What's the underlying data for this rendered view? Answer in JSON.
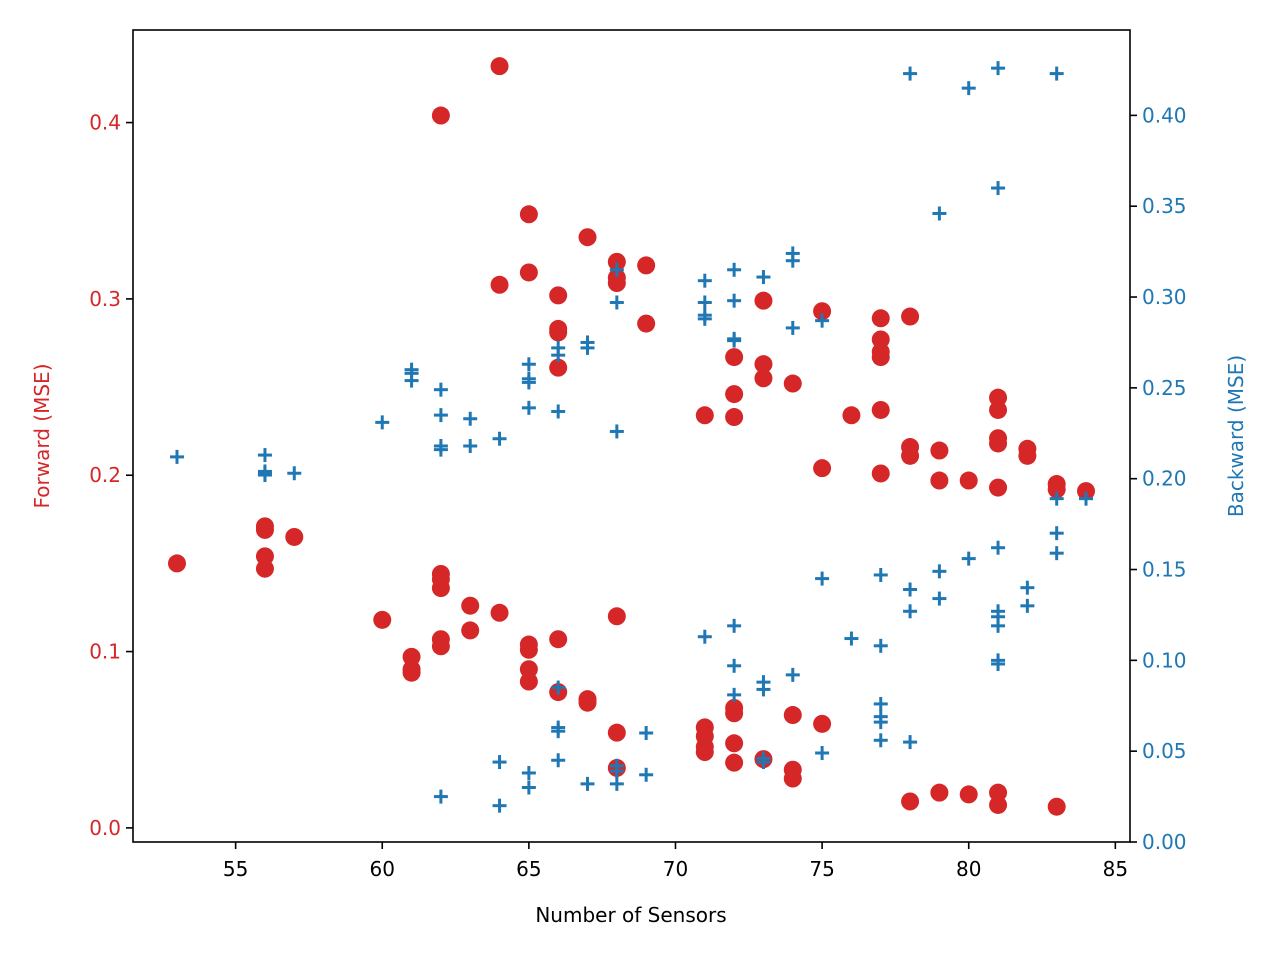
{
  "chart_data": {
    "type": "scatter",
    "xlabel": "Number of Sensors",
    "ylabel_left": "Forward (MSE)",
    "ylabel_right": "Backward (MSE)",
    "xlim": [
      51.5,
      85.5
    ],
    "ylim_left": [
      -0.008,
      0.4525
    ],
    "ylim_right": [
      0,
      0.447
    ],
    "x_ticks": [
      55,
      60,
      65,
      70,
      75,
      80,
      85
    ],
    "x_tick_labels": [
      "55",
      "60",
      "65",
      "70",
      "75",
      "80",
      "85"
    ],
    "left_ticks": [
      0.0,
      0.1,
      0.2,
      0.3,
      0.4
    ],
    "left_tick_labels": [
      "0.0",
      "0.1",
      "0.2",
      "0.3",
      "0.4"
    ],
    "right_ticks": [
      0.0,
      0.05,
      0.1,
      0.15,
      0.2,
      0.25,
      0.3,
      0.35,
      0.4
    ],
    "right_tick_labels": [
      "0.00",
      "0.05",
      "0.10",
      "0.15",
      "0.20",
      "0.25",
      "0.30",
      "0.35",
      "0.40"
    ],
    "colors": {
      "forward": "#d62728",
      "backward": "#1f77b4",
      "axis": "#000000"
    },
    "series": [
      {
        "axis": "left",
        "marker": "circle",
        "color": "#d62728",
        "points": [
          [
            53,
            0.15
          ],
          [
            56,
            0.171
          ],
          [
            56,
            0.169
          ],
          [
            56,
            0.154
          ],
          [
            56,
            0.147
          ],
          [
            57,
            0.165
          ],
          [
            60,
            0.118
          ],
          [
            61,
            0.097
          ],
          [
            61,
            0.09
          ],
          [
            61,
            0.088
          ],
          [
            62,
            0.404
          ],
          [
            62,
            0.144
          ],
          [
            62,
            0.141
          ],
          [
            62,
            0.136
          ],
          [
            62,
            0.107
          ],
          [
            62,
            0.103
          ],
          [
            63,
            0.126
          ],
          [
            63,
            0.112
          ],
          [
            64,
            0.432
          ],
          [
            64,
            0.308
          ],
          [
            64,
            0.122
          ],
          [
            65,
            0.348
          ],
          [
            65,
            0.315
          ],
          [
            65,
            0.104
          ],
          [
            65,
            0.101
          ],
          [
            65,
            0.09
          ],
          [
            65,
            0.083
          ],
          [
            66,
            0.302
          ],
          [
            66,
            0.283
          ],
          [
            66,
            0.281
          ],
          [
            66,
            0.261
          ],
          [
            66,
            0.107
          ],
          [
            66,
            0.077
          ],
          [
            67,
            0.335
          ],
          [
            67,
            0.073
          ],
          [
            67,
            0.071
          ],
          [
            68,
            0.321
          ],
          [
            68,
            0.312
          ],
          [
            68,
            0.309
          ],
          [
            68,
            0.12
          ],
          [
            68,
            0.054
          ],
          [
            68,
            0.034
          ],
          [
            69,
            0.319
          ],
          [
            69,
            0.286
          ],
          [
            71,
            0.234
          ],
          [
            71,
            0.057
          ],
          [
            71,
            0.052
          ],
          [
            71,
            0.046
          ],
          [
            71,
            0.043
          ],
          [
            72,
            0.267
          ],
          [
            72,
            0.246
          ],
          [
            72,
            0.233
          ],
          [
            72,
            0.068
          ],
          [
            72,
            0.065
          ],
          [
            72,
            0.048
          ],
          [
            72,
            0.037
          ],
          [
            73,
            0.299
          ],
          [
            73,
            0.263
          ],
          [
            73,
            0.255
          ],
          [
            73,
            0.039
          ],
          [
            74,
            0.252
          ],
          [
            74,
            0.064
          ],
          [
            74,
            0.033
          ],
          [
            74,
            0.028
          ],
          [
            75,
            0.293
          ],
          [
            75,
            0.204
          ],
          [
            75,
            0.059
          ],
          [
            76,
            0.234
          ],
          [
            77,
            0.289
          ],
          [
            77,
            0.277
          ],
          [
            77,
            0.27
          ],
          [
            77,
            0.267
          ],
          [
            77,
            0.237
          ],
          [
            77,
            0.201
          ],
          [
            78,
            0.29
          ],
          [
            78,
            0.216
          ],
          [
            78,
            0.211
          ],
          [
            78,
            0.015
          ],
          [
            79,
            0.214
          ],
          [
            79,
            0.197
          ],
          [
            79,
            0.02
          ],
          [
            80,
            0.197
          ],
          [
            80,
            0.019
          ],
          [
            81,
            0.244
          ],
          [
            81,
            0.237
          ],
          [
            81,
            0.221
          ],
          [
            81,
            0.218
          ],
          [
            81,
            0.193
          ],
          [
            81,
            0.02
          ],
          [
            81,
            0.013
          ],
          [
            82,
            0.215
          ],
          [
            82,
            0.211
          ],
          [
            83,
            0.195
          ],
          [
            83,
            0.192
          ],
          [
            83,
            0.012
          ],
          [
            84,
            0.191
          ]
        ]
      },
      {
        "axis": "right",
        "marker": "plus",
        "color": "#1f77b4",
        "points": [
          [
            53,
            0.212
          ],
          [
            56,
            0.213
          ],
          [
            56,
            0.204
          ],
          [
            56,
            0.203
          ],
          [
            56,
            0.202
          ],
          [
            57,
            0.203
          ],
          [
            60,
            0.231
          ],
          [
            61,
            0.26
          ],
          [
            61,
            0.258
          ],
          [
            61,
            0.254
          ],
          [
            62,
            0.249
          ],
          [
            62,
            0.235
          ],
          [
            62,
            0.218
          ],
          [
            62,
            0.216
          ],
          [
            62,
            0.025
          ],
          [
            63,
            0.233
          ],
          [
            63,
            0.218
          ],
          [
            64,
            0.222
          ],
          [
            64,
            0.044
          ],
          [
            64,
            0.02
          ],
          [
            65,
            0.263
          ],
          [
            65,
            0.255
          ],
          [
            65,
            0.253
          ],
          [
            65,
            0.239
          ],
          [
            65,
            0.038
          ],
          [
            65,
            0.03
          ],
          [
            66,
            0.272
          ],
          [
            66,
            0.268
          ],
          [
            66,
            0.237
          ],
          [
            66,
            0.085
          ],
          [
            66,
            0.063
          ],
          [
            66,
            0.061
          ],
          [
            66,
            0.045
          ],
          [
            67,
            0.275
          ],
          [
            67,
            0.272
          ],
          [
            67,
            0.032
          ],
          [
            68,
            0.315
          ],
          [
            68,
            0.297
          ],
          [
            68,
            0.226
          ],
          [
            68,
            0.042
          ],
          [
            68,
            0.039
          ],
          [
            68,
            0.032
          ],
          [
            69,
            0.06
          ],
          [
            69,
            0.037
          ],
          [
            71,
            0.309
          ],
          [
            71,
            0.297
          ],
          [
            71,
            0.29
          ],
          [
            71,
            0.288
          ],
          [
            71,
            0.113
          ],
          [
            72,
            0.315
          ],
          [
            72,
            0.298
          ],
          [
            72,
            0.277
          ],
          [
            72,
            0.276
          ],
          [
            72,
            0.119
          ],
          [
            72,
            0.097
          ],
          [
            72,
            0.081
          ],
          [
            73,
            0.311
          ],
          [
            73,
            0.088
          ],
          [
            73,
            0.084
          ],
          [
            73,
            0.046
          ],
          [
            73,
            0.044
          ],
          [
            74,
            0.324
          ],
          [
            74,
            0.32
          ],
          [
            74,
            0.283
          ],
          [
            74,
            0.092
          ],
          [
            75,
            0.287
          ],
          [
            75,
            0.145
          ],
          [
            75,
            0.049
          ],
          [
            76,
            0.112
          ],
          [
            77,
            0.147
          ],
          [
            77,
            0.108
          ],
          [
            77,
            0.076
          ],
          [
            77,
            0.069
          ],
          [
            77,
            0.066
          ],
          [
            77,
            0.056
          ],
          [
            78,
            0.423
          ],
          [
            78,
            0.139
          ],
          [
            78,
            0.127
          ],
          [
            78,
            0.055
          ],
          [
            79,
            0.346
          ],
          [
            79,
            0.149
          ],
          [
            79,
            0.134
          ],
          [
            80,
            0.415
          ],
          [
            80,
            0.156
          ],
          [
            81,
            0.426
          ],
          [
            81,
            0.36
          ],
          [
            81,
            0.162
          ],
          [
            81,
            0.127
          ],
          [
            81,
            0.124
          ],
          [
            81,
            0.119
          ],
          [
            81,
            0.1
          ],
          [
            81,
            0.098
          ],
          [
            82,
            0.14
          ],
          [
            82,
            0.13
          ],
          [
            83,
            0.423
          ],
          [
            83,
            0.189
          ],
          [
            83,
            0.17
          ],
          [
            83,
            0.159
          ],
          [
            84,
            0.189
          ]
        ]
      }
    ]
  }
}
